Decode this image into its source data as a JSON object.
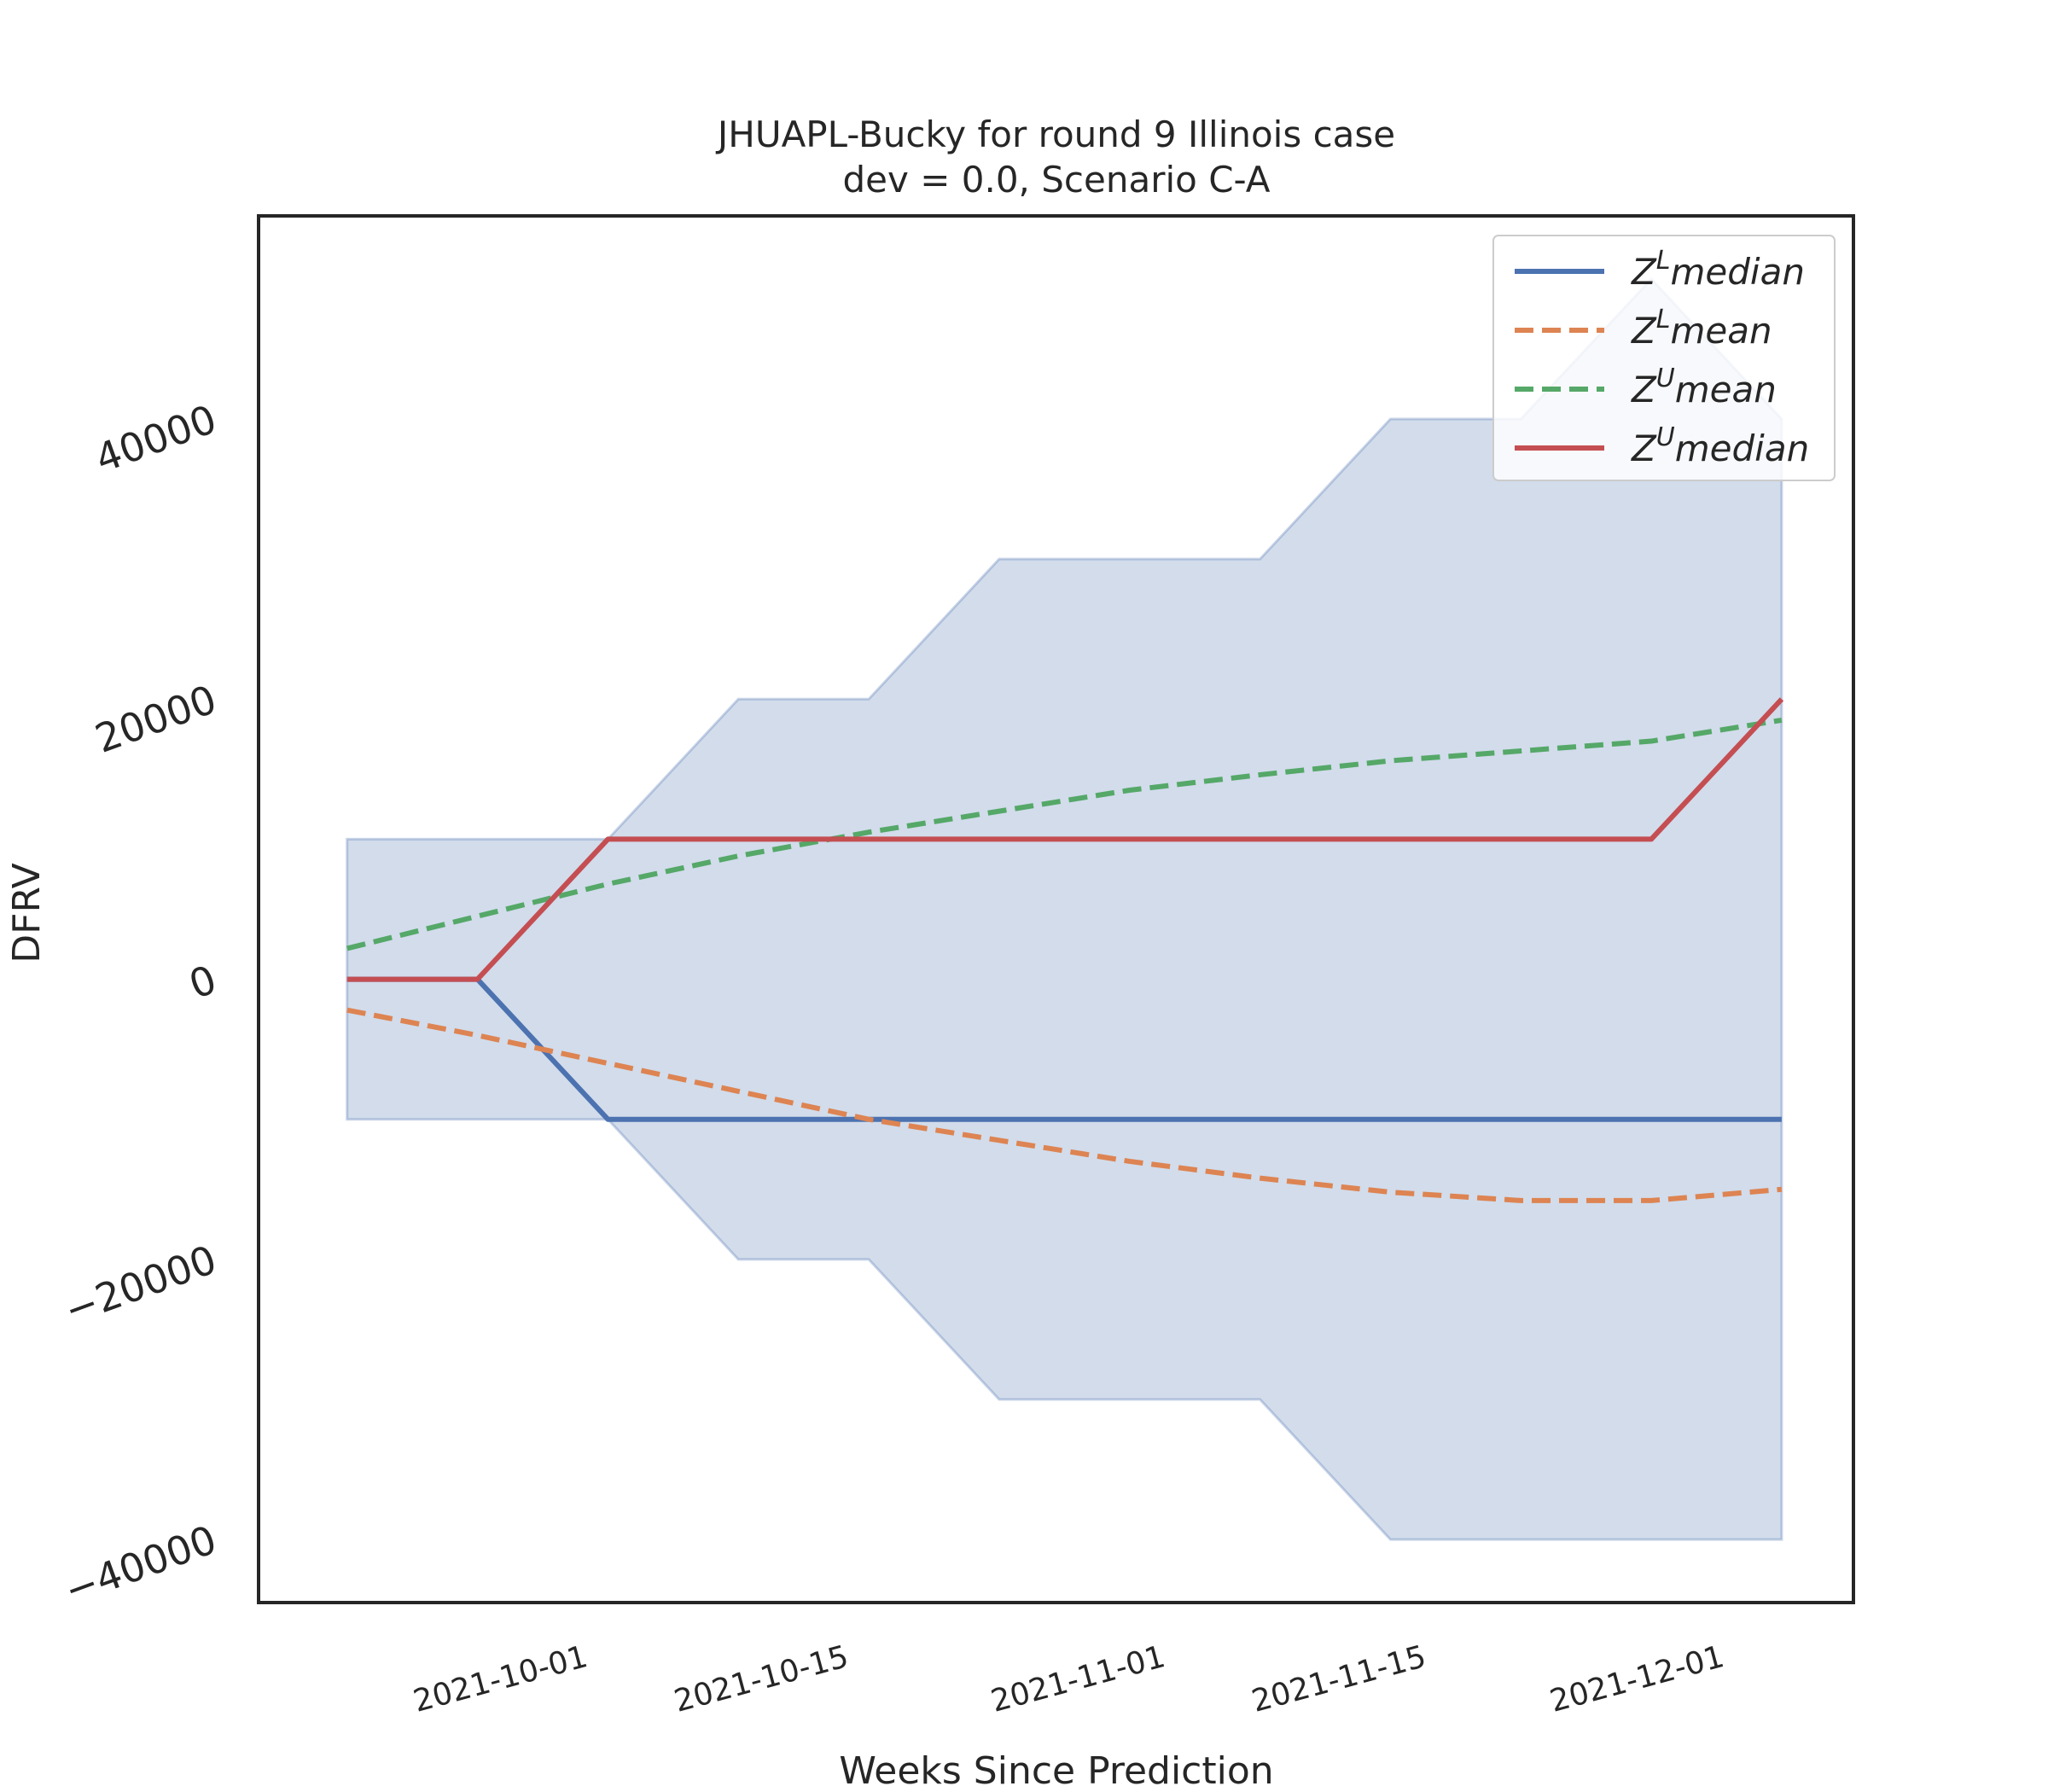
{
  "chart_data": {
    "type": "line",
    "title": "JHUAPL-Bucky for round 9 Illinois case",
    "subtitle": "dev = 0.0, Scenario C-A",
    "xlabel": "Weeks Since Prediction",
    "ylabel": "DFRV",
    "x": [
      "2021-09-18",
      "2021-09-25",
      "2021-10-02",
      "2021-10-09",
      "2021-10-16",
      "2021-10-23",
      "2021-10-30",
      "2021-11-06",
      "2021-11-13",
      "2021-11-20",
      "2021-11-27",
      "2021-12-04"
    ],
    "xticks": [
      "2021-10-01",
      "2021-10-15",
      "2021-11-01",
      "2021-11-15",
      "2021-12-01"
    ],
    "yticks": [
      -40000,
      -20000,
      0,
      20000,
      40000
    ],
    "ylim": [
      -44500,
      54500
    ],
    "grid": false,
    "legend_position": "top-right",
    "band": {
      "upper": [
        10000,
        10000,
        10000,
        20000,
        20000,
        30000,
        30000,
        30000,
        40000,
        40000,
        50000,
        40000
      ],
      "lower": [
        -10000,
        -10000,
        -10000,
        -20000,
        -20000,
        -30000,
        -30000,
        -30000,
        -40000,
        -40000,
        -40000,
        -40000
      ],
      "color": "#4c72b0"
    },
    "series": [
      {
        "name": "Z^L median",
        "legend_base": "Z",
        "legend_sup": "L",
        "legend_rest": "median",
        "style": "solid",
        "color": "#4c72b0",
        "values": [
          0,
          0,
          -10000,
          -10000,
          -10000,
          -10000,
          -10000,
          -10000,
          -10000,
          -10000,
          -10000,
          -10000
        ]
      },
      {
        "name": "Z^L mean",
        "legend_base": "Z",
        "legend_sup": "L",
        "legend_rest": "mean",
        "style": "dashed",
        "color": "#dd8452",
        "values": [
          -2200,
          -4000,
          -6000,
          -8000,
          -10000,
          -11500,
          -13000,
          -14200,
          -15200,
          -15800,
          -15800,
          -15000
        ]
      },
      {
        "name": "Z^U mean",
        "legend_base": "Z",
        "legend_sup": "U",
        "legend_rest": "mean",
        "style": "dashed",
        "color": "#55a868",
        "values": [
          2200,
          4500,
          6800,
          8800,
          10500,
          12000,
          13500,
          14600,
          15600,
          16300,
          17000,
          18500
        ]
      },
      {
        "name": "Z^U median",
        "legend_base": "Z",
        "legend_sup": "U",
        "legend_rest": "median",
        "style": "solid",
        "color": "#c44e52",
        "values": [
          0,
          0,
          10000,
          10000,
          10000,
          10000,
          10000,
          10000,
          10000,
          10000,
          10000,
          20000
        ]
      }
    ]
  }
}
